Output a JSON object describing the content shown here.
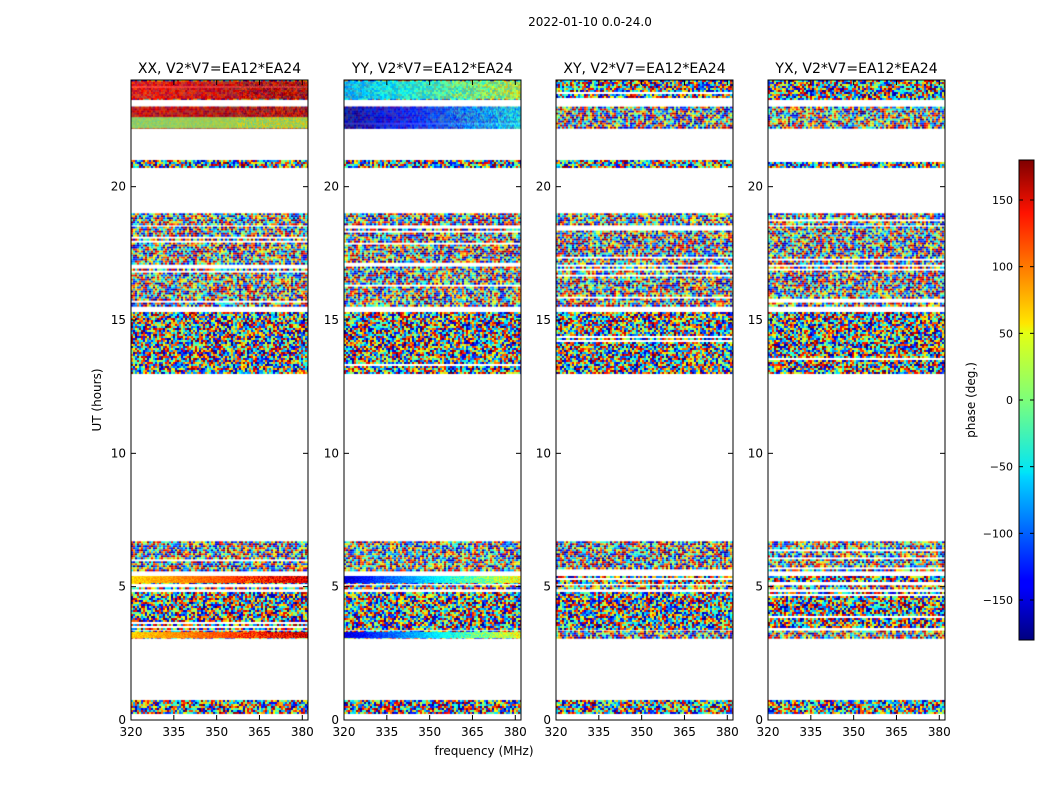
{
  "figure": {
    "suptitle": "2022-01-10 0.0-24.0",
    "xlabel": "frequency (MHz)",
    "ylabel": "UT (hours)"
  },
  "chart_data": {
    "type": "heatmap",
    "x_range": [
      320,
      382
    ],
    "y_range": [
      0,
      24
    ],
    "x_ticks": [
      "320",
      "335",
      "350",
      "365",
      "380"
    ],
    "x_tick_values": [
      320,
      335,
      350,
      365,
      380
    ],
    "y_ticks": [
      "0",
      "5",
      "10",
      "15",
      "20"
    ],
    "y_tick_values": [
      0,
      5,
      10,
      15,
      20
    ],
    "colormap": "jet",
    "colorbar": {
      "label": "phase (deg.)",
      "range": [
        -180,
        180
      ],
      "ticks": [
        "−150",
        "−100",
        "−50",
        "0",
        "50",
        "100",
        "150"
      ],
      "tick_values": [
        -150,
        -100,
        -50,
        0,
        50,
        100,
        150
      ]
    },
    "data_blocks_ut": [
      [
        0.25,
        0.75
      ],
      [
        3.1,
        3.35
      ],
      [
        3.4,
        4.8
      ],
      [
        4.9,
        5.05
      ],
      [
        5.15,
        5.4
      ],
      [
        5.6,
        6.7
      ],
      [
        13.0,
        15.3
      ],
      [
        15.5,
        17.0
      ],
      [
        17.1,
        18.5
      ],
      [
        18.6,
        19.0
      ],
      [
        20.7,
        21.0
      ],
      [
        22.2,
        23.0
      ],
      [
        23.3,
        24.0
      ]
    ],
    "panels": [
      {
        "title": "XX, V2*V7=EA12*EA24",
        "smooth_bands": [
          {
            "ut": [
              23.3,
              23.95
            ],
            "phase_start": 130,
            "phase_end": 170
          },
          {
            "ut": [
              22.2,
              23.0
            ],
            "phase_start": 150,
            "phase_end": 170
          },
          {
            "ut": [
              22.2,
              22.6
            ],
            "phase_start": 0,
            "phase_end": 20
          },
          {
            "ut": [
              5.15,
              5.4
            ],
            "phase_start": 60,
            "phase_end": 150
          },
          {
            "ut": [
              3.1,
              3.3
            ],
            "phase_start": 60,
            "phase_end": 150
          }
        ]
      },
      {
        "title": "YY, V2*V7=EA12*EA24",
        "smooth_bands": [
          {
            "ut": [
              23.3,
              23.95
            ],
            "phase_start": -70,
            "phase_end": 20
          },
          {
            "ut": [
              22.2,
              23.0
            ],
            "phase_start": -170,
            "phase_end": -60
          },
          {
            "ut": [
              5.15,
              5.4
            ],
            "phase_start": -150,
            "phase_end": 40
          },
          {
            "ut": [
              3.1,
              3.3
            ],
            "phase_start": -150,
            "phase_end": 40
          }
        ]
      },
      {
        "title": "XY, V2*V7=EA12*EA24",
        "smooth_bands": []
      },
      {
        "title": "YX, V2*V7=EA12*EA24",
        "smooth_bands": []
      }
    ]
  }
}
